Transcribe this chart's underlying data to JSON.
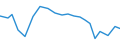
{
  "x": [
    0,
    2,
    8,
    12,
    18,
    25,
    33,
    40,
    48,
    55,
    62,
    68,
    74,
    80,
    85,
    90,
    95,
    100,
    108,
    115,
    120
  ],
  "y": [
    0.3,
    0.2,
    -0.1,
    0.6,
    -2.5,
    -3.8,
    0.2,
    2.2,
    1.8,
    0.9,
    0.5,
    0.7,
    0.3,
    0.1,
    -0.5,
    -1.2,
    -4.2,
    -2.8,
    -3.6,
    -1.8,
    -2.2
  ],
  "line_color": "#2b8fd4",
  "line_width": 1.0,
  "background_color": "#ffffff",
  "ylim": [
    -5.5,
    3.5
  ]
}
